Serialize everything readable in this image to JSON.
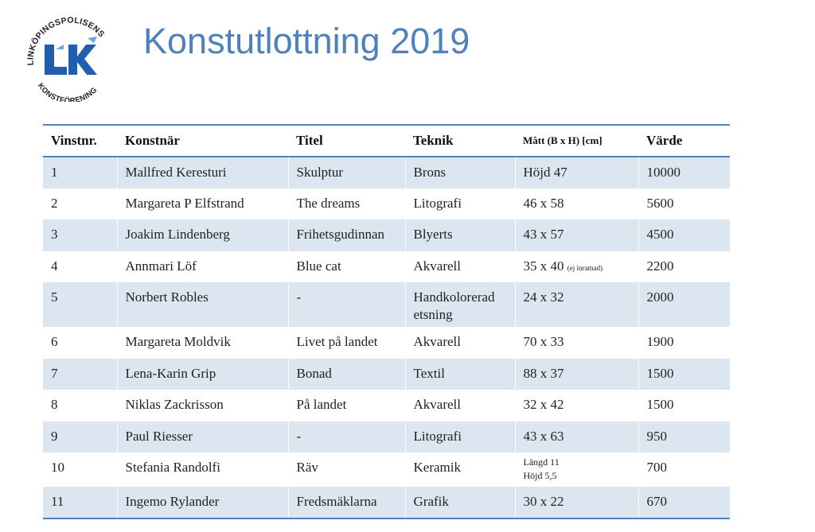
{
  "logo": {
    "ring_top": "LINKÖPINGSPOLISENS",
    "ring_bottom": "KONSTFÖRENING",
    "initials": "LK",
    "brand_color": "#1f5fae"
  },
  "title": "Konstutlottning 2019",
  "colors": {
    "title": "#4f81bd",
    "row_alt": "#dce6f1",
    "rule": "#4f81bd"
  },
  "table": {
    "headers": {
      "nr": "Vinstnr.",
      "artist": "Konstnär",
      "title": "Titel",
      "technique": "Teknik",
      "size": "Mått (B x H) [cm]",
      "value": "Värde"
    },
    "rows": [
      {
        "nr": "1",
        "artist": "Mallfred Keresturi",
        "title": "Skulptur",
        "technique": "Brons",
        "size": "Höjd 47",
        "value": "10000"
      },
      {
        "nr": "2",
        "artist": "Margareta P Elfstrand",
        "title": "The dreams",
        "technique": "Litografi",
        "size": "46 x 58",
        "value": "5600"
      },
      {
        "nr": "3",
        "artist": "Joakim Lindenberg",
        "title": "Frihetsgudinnan",
        "technique": "Blyerts",
        "size": "43 x 57",
        "value": "4500"
      },
      {
        "nr": "4",
        "artist": "Annmari Löf",
        "title": "Blue cat",
        "technique": "Akvarell",
        "size": "35 x 40",
        "size_note": "(ej inramad)",
        "value": "2200"
      },
      {
        "nr": "5",
        "artist": "Norbert Robles",
        "title": "-",
        "technique": "Handkolorerad etsning",
        "size": "24 x 32",
        "value": "2000"
      },
      {
        "nr": "6",
        "artist": "Margareta Moldvik",
        "title": "Livet på landet",
        "technique": "Akvarell",
        "size": "70 x 33",
        "value": "1900"
      },
      {
        "nr": "7",
        "artist": "Lena-Karin Grip",
        "title": "Bonad",
        "technique": "Textil",
        "size": "88 x 37",
        "value": "1500"
      },
      {
        "nr": "8",
        "artist": "Niklas Zackrisson",
        "title": "På landet",
        "technique": "Akvarell",
        "size": "32 x 42",
        "value": "1500"
      },
      {
        "nr": "9",
        "artist": "Paul Riesser",
        "title": "-",
        "technique": "Litografi",
        "size": "43 x 63",
        "value": "950"
      },
      {
        "nr": "10",
        "artist": "Stefania Randolfi",
        "title": "Räv",
        "technique": "Keramik",
        "size_line1": "Längd 11",
        "size_line2": "Höjd 5,5",
        "value": "700"
      },
      {
        "nr": "11",
        "artist": "Ingemo Rylander",
        "title": "Fredsmäklarna",
        "technique": "Grafik",
        "size": "30 x 22",
        "value": "670"
      }
    ]
  }
}
